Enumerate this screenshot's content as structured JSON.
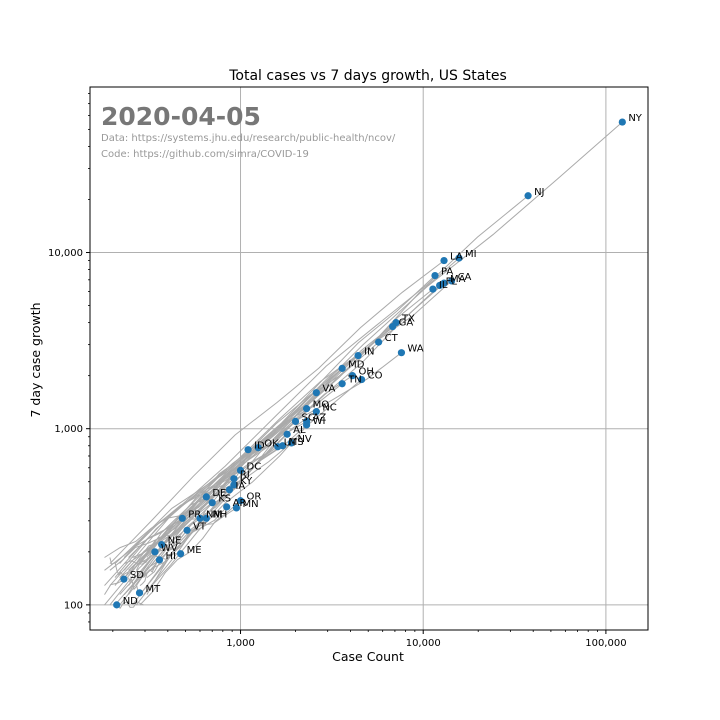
{
  "colors": {
    "point": "#1f77b4",
    "trail": "#aaaaaa",
    "grid": "#b0b0b0",
    "date_stamp": "#777777",
    "source_text": "#999999"
  },
  "annotations": {
    "date": "2020-04-05",
    "data_source": "Data: https://systems.jhu.edu/research/public-health/ncov/",
    "code_source": "Code: https://github.com/simra/COVID-19"
  },
  "chart_data": {
    "type": "scatter",
    "title": "Total cases vs 7 days growth, US States",
    "xlabel": "Case Count",
    "ylabel": "7 day case growth",
    "x_scale": "log",
    "y_scale": "log",
    "xlim": [
      150,
      170000
    ],
    "ylim": [
      72,
      87000
    ],
    "x_ticks": [
      {
        "value": 1000,
        "label": "1,000"
      },
      {
        "value": 10000,
        "label": "10,000"
      },
      {
        "value": 100000,
        "label": "100,000"
      }
    ],
    "y_ticks": [
      {
        "value": 100,
        "label": "100"
      },
      {
        "value": 1000,
        "label": "1,000"
      },
      {
        "value": 10000,
        "label": "10,000"
      }
    ],
    "grid": true,
    "series": [
      {
        "values": [
          {
            "label": "NY",
            "x": 123000,
            "y": 55000
          },
          {
            "label": "NJ",
            "x": 37500,
            "y": 21000
          },
          {
            "label": "MI",
            "x": 15700,
            "y": 9300
          },
          {
            "label": "LA",
            "x": 13000,
            "y": 9000
          },
          {
            "label": "PA",
            "x": 11600,
            "y": 7400
          },
          {
            "label": "CA",
            "x": 14300,
            "y": 6900
          },
          {
            "label": "MA",
            "x": 13000,
            "y": 6700
          },
          {
            "label": "FL",
            "x": 12300,
            "y": 6500
          },
          {
            "label": "IL",
            "x": 11300,
            "y": 6200
          },
          {
            "label": "TX",
            "x": 7100,
            "y": 4000
          },
          {
            "label": "GA",
            "x": 6800,
            "y": 3800
          },
          {
            "label": "CT",
            "x": 5700,
            "y": 3100
          },
          {
            "label": "WA",
            "x": 7600,
            "y": 2700
          },
          {
            "label": "IN",
            "x": 4400,
            "y": 2600
          },
          {
            "label": "MD",
            "x": 3600,
            "y": 2200
          },
          {
            "label": "OH",
            "x": 4100,
            "y": 2000
          },
          {
            "label": "CO",
            "x": 4600,
            "y": 1900
          },
          {
            "label": "TN",
            "x": 3600,
            "y": 1800
          },
          {
            "label": "VA",
            "x": 2600,
            "y": 1600
          },
          {
            "label": "MO",
            "x": 2300,
            "y": 1300
          },
          {
            "label": "NC",
            "x": 2600,
            "y": 1250
          },
          {
            "label": "SC",
            "x": 2000,
            "y": 1100
          },
          {
            "label": "AZ",
            "x": 2300,
            "y": 1100
          },
          {
            "label": "WI",
            "x": 2300,
            "y": 1050
          },
          {
            "label": "AL",
            "x": 1800,
            "y": 930
          },
          {
            "label": "NV",
            "x": 1900,
            "y": 830
          },
          {
            "label": "MS",
            "x": 1700,
            "y": 800
          },
          {
            "label": "UT",
            "x": 1600,
            "y": 790
          },
          {
            "label": "OK",
            "x": 1250,
            "y": 780
          },
          {
            "label": "ID",
            "x": 1100,
            "y": 760
          },
          {
            "label": "DC",
            "x": 1000,
            "y": 580
          },
          {
            "label": "RI",
            "x": 920,
            "y": 520
          },
          {
            "label": "KY",
            "x": 920,
            "y": 480
          },
          {
            "label": "IA",
            "x": 870,
            "y": 450
          },
          {
            "label": "DE",
            "x": 650,
            "y": 410
          },
          {
            "label": "OR",
            "x": 1000,
            "y": 390
          },
          {
            "label": "KS",
            "x": 700,
            "y": 380
          },
          {
            "label": "AR",
            "x": 840,
            "y": 360
          },
          {
            "label": "MN",
            "x": 950,
            "y": 355
          },
          {
            "label": "PR",
            "x": 480,
            "y": 310
          },
          {
            "label": "NM",
            "x": 600,
            "y": 310
          },
          {
            "label": "NH",
            "x": 650,
            "y": 310
          },
          {
            "label": "VT",
            "x": 510,
            "y": 265
          },
          {
            "label": "NE",
            "x": 370,
            "y": 220
          },
          {
            "label": "WV",
            "x": 340,
            "y": 200
          },
          {
            "label": "ME",
            "x": 470,
            "y": 195
          },
          {
            "label": "HI",
            "x": 360,
            "y": 180
          },
          {
            "label": "SD",
            "x": 230,
            "y": 140
          },
          {
            "label": "MT",
            "x": 280,
            "y": 117
          },
          {
            "label": "ND",
            "x": 210,
            "y": 100
          }
        ]
      }
    ]
  }
}
